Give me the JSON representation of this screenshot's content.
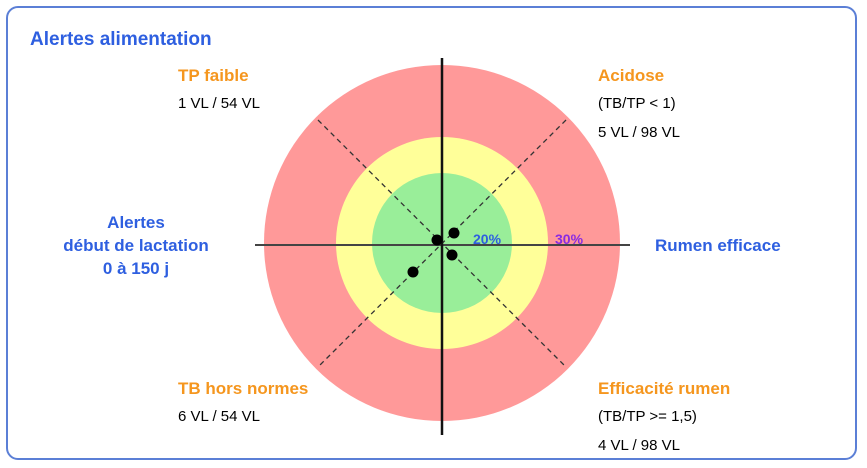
{
  "title": "Alertes alimentation",
  "quadrants": {
    "top_left": {
      "label": "TP faible",
      "counts": "1 VL / 54 VL"
    },
    "top_right": {
      "label": "Acidose",
      "condition": "(TB/TP < 1)",
      "counts": "5 VL / 98 VL"
    },
    "bottom_left": {
      "label": "TB hors normes",
      "counts": "6 VL / 54 VL"
    },
    "bottom_right": {
      "label": "Efficacité rumen",
      "condition": "(TB/TP >= 1,5)",
      "counts": "4 VL / 98 VL"
    }
  },
  "left_axis": {
    "line1": "Alertes",
    "line2": "début de lactation",
    "line3": "0 à 150 j"
  },
  "right_axis": {
    "label": "Rumen efficace"
  },
  "rings": [
    {
      "label": "20%",
      "color": "#99ee99"
    },
    {
      "label": "30%",
      "color": "#ffff99"
    },
    {
      "label": "",
      "color": "#ff9999"
    }
  ],
  "ring_label_colors": {
    "inner": "#2e5fe0",
    "middle": "#8a2be2"
  },
  "colors": {
    "accent": "#2e5fe0",
    "orange": "#f5961e",
    "border": "#5b7fd6"
  }
}
